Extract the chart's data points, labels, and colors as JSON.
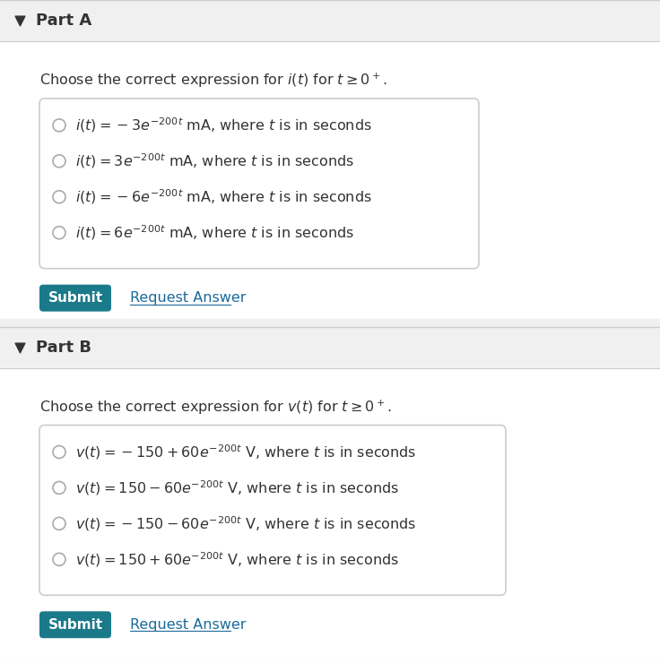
{
  "bg_color": "#f0f0f0",
  "white": "#ffffff",
  "border_color": "#cccccc",
  "submit_bg": "#1a7a8a",
  "submit_text": "#ffffff",
  "link_color": "#1a6a9a",
  "text_color": "#333333",
  "part_a": {
    "header": "Part A",
    "question": "Choose the correct expression for $i(t)$ for $t \\geq 0^+$.",
    "options": [
      "$i(t) = -3e^{-200t}$ mA, where $t$ is in seconds",
      "$i(t) = 3e^{-200t}$ mA, where $t$ is in seconds",
      "$i(t) = -6e^{-200t}$ mA, where $t$ is in seconds",
      "$i(t) = 6e^{-200t}$ mA, where $t$ is in seconds"
    ]
  },
  "part_b": {
    "header": "Part B",
    "question": "Choose the correct expression for $v(t)$ for $t \\geq 0^+$.",
    "options": [
      "$v(t) = -150 + 60e^{-200t}$ V, where $t$ is in seconds",
      "$v(t) = 150 - 60e^{-200t}$ V, where $t$ is in seconds",
      "$v(t) = -150 - 60e^{-200t}$ V, where $t$ is in seconds",
      "$v(t) = 150 + 60e^{-200t}$ V, where $t$ is in seconds"
    ]
  },
  "submit_label": "Submit",
  "request_label": "Request Answer"
}
